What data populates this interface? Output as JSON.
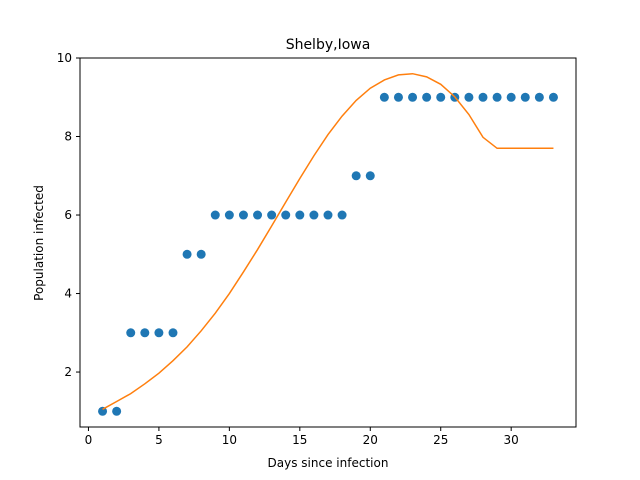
{
  "chart_data": {
    "type": "scatter",
    "title": "Shelby,Iowa",
    "xlabel": "Days since infection",
    "ylabel": "Population infected",
    "xlim": [
      -0.6,
      34.6
    ],
    "ylim": [
      0.6,
      10.0
    ],
    "xticks": [
      0,
      5,
      10,
      15,
      20,
      25,
      30
    ],
    "yticks": [
      2,
      4,
      6,
      8,
      10
    ],
    "grid": false,
    "series": [
      {
        "type": "scatter",
        "color": "#1f77b4",
        "x": [
          1,
          2,
          3,
          4,
          5,
          6,
          7,
          8,
          9,
          10,
          11,
          12,
          13,
          14,
          15,
          16,
          17,
          18,
          19,
          20,
          21,
          22,
          23,
          24,
          25,
          26,
          27,
          28,
          29,
          30,
          31,
          32,
          33
        ],
        "y": [
          1,
          1,
          3,
          3,
          3,
          3,
          5,
          5,
          6,
          6,
          6,
          6,
          6,
          6,
          6,
          6,
          6,
          6,
          7,
          7,
          9,
          9,
          9,
          9,
          9,
          9,
          9,
          9,
          9,
          9,
          9,
          9,
          9
        ]
      },
      {
        "type": "line",
        "color": "#ff7f0e",
        "x": [
          1,
          2,
          3,
          4,
          5,
          6,
          7,
          8,
          9,
          10,
          11,
          12,
          13,
          14,
          15,
          16,
          17,
          18,
          19,
          20,
          21,
          22,
          23,
          24,
          25,
          26,
          27,
          28,
          29,
          30,
          31,
          32,
          33
        ],
        "y": [
          1.05,
          1.25,
          1.45,
          1.7,
          1.97,
          2.29,
          2.64,
          3.05,
          3.5,
          4.0,
          4.55,
          5.12,
          5.72,
          6.33,
          6.93,
          7.51,
          8.05,
          8.52,
          8.92,
          9.23,
          9.44,
          9.57,
          9.6,
          9.52,
          9.33,
          9.01,
          8.56,
          7.98,
          7.7,
          7.7,
          7.7,
          7.7,
          7.7
        ]
      }
    ]
  }
}
